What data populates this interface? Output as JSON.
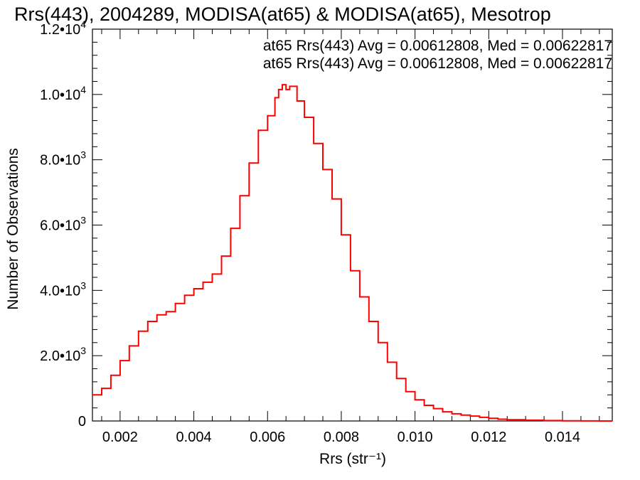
{
  "chart_data": {
    "type": "histogram",
    "title": "Rrs(443), 2004289, MODISA(at65) & MODISA(at65), Mesotrop",
    "xlabel": "Rrs (str⁻¹)",
    "ylabel": "Number of Observations",
    "xlim": [
      0.00125,
      0.01535
    ],
    "ylim": [
      0,
      12000
    ],
    "xticks": [
      {
        "value": 0.002,
        "label": "0.002"
      },
      {
        "value": 0.004,
        "label": "0.004"
      },
      {
        "value": 0.006,
        "label": "0.006"
      },
      {
        "value": 0.008,
        "label": "0.008"
      },
      {
        "value": 0.01,
        "label": "0.010"
      },
      {
        "value": 0.012,
        "label": "0.012"
      },
      {
        "value": 0.014,
        "label": "0.014"
      }
    ],
    "yticks": [
      {
        "value": 0,
        "mantissa": "0",
        "exp": ""
      },
      {
        "value": 2000,
        "mantissa": "2.0•10",
        "exp": "3"
      },
      {
        "value": 4000,
        "mantissa": "4.0•10",
        "exp": "3"
      },
      {
        "value": 6000,
        "mantissa": "6.0•10",
        "exp": "3"
      },
      {
        "value": 8000,
        "mantissa": "8.0•10",
        "exp": "3"
      },
      {
        "value": 10000,
        "mantissa": "1.0•10",
        "exp": "4"
      },
      {
        "value": 12000,
        "mantissa": "1.2•10",
        "exp": "4"
      }
    ],
    "annotations": [
      {
        "text": "at65 Rrs(443) Avg = 0.00612808, Med = 0.00622817",
        "color": "#000000"
      },
      {
        "text": "at65 Rrs(443) Avg = 0.00612808, Med = 0.00622817",
        "color": "#ff0000"
      }
    ],
    "series": [
      {
        "color": "#ff0000",
        "points": [
          [
            0.00125,
            800
          ],
          [
            0.0015,
            1000
          ],
          [
            0.00175,
            1400
          ],
          [
            0.002,
            1850
          ],
          [
            0.00225,
            2300
          ],
          [
            0.0025,
            2750
          ],
          [
            0.00275,
            3050
          ],
          [
            0.003,
            3250
          ],
          [
            0.00325,
            3350
          ],
          [
            0.0035,
            3600
          ],
          [
            0.00375,
            3850
          ],
          [
            0.004,
            4050
          ],
          [
            0.00425,
            4250
          ],
          [
            0.0045,
            4500
          ],
          [
            0.00475,
            5050
          ],
          [
            0.005,
            5900
          ],
          [
            0.00525,
            6900
          ],
          [
            0.0055,
            7900
          ],
          [
            0.00575,
            8900
          ],
          [
            0.006,
            9350
          ],
          [
            0.0062,
            9900
          ],
          [
            0.0063,
            10150
          ],
          [
            0.0064,
            10300
          ],
          [
            0.0065,
            10150
          ],
          [
            0.0066,
            10250
          ],
          [
            0.0068,
            9800
          ],
          [
            0.007,
            9300
          ],
          [
            0.00725,
            8500
          ],
          [
            0.0075,
            7700
          ],
          [
            0.00775,
            6800
          ],
          [
            0.008,
            5700
          ],
          [
            0.00825,
            4600
          ],
          [
            0.0085,
            3800
          ],
          [
            0.00875,
            3050
          ],
          [
            0.009,
            2400
          ],
          [
            0.00925,
            1800
          ],
          [
            0.0095,
            1300
          ],
          [
            0.00975,
            900
          ],
          [
            0.01,
            650
          ],
          [
            0.01025,
            480
          ],
          [
            0.0105,
            380
          ],
          [
            0.01075,
            280
          ],
          [
            0.011,
            220
          ],
          [
            0.01125,
            180
          ],
          [
            0.0115,
            150
          ],
          [
            0.01175,
            110
          ],
          [
            0.012,
            80
          ],
          [
            0.01225,
            55
          ],
          [
            0.0125,
            40
          ],
          [
            0.013,
            25
          ],
          [
            0.0135,
            12
          ],
          [
            0.014,
            6
          ],
          [
            0.0145,
            2
          ],
          [
            0.015,
            1
          ],
          [
            0.01535,
            0
          ]
        ]
      }
    ]
  }
}
